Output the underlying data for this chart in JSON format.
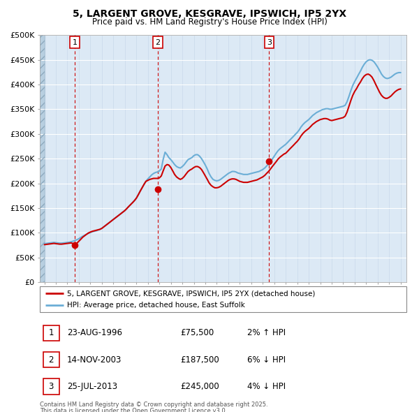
{
  "title_line1": "5, LARGENT GROVE, KESGRAVE, IPSWICH, IP5 2YX",
  "title_line2": "Price paid vs. HM Land Registry's House Price Index (HPI)",
  "ylim": [
    0,
    500000
  ],
  "yticks": [
    0,
    50000,
    100000,
    150000,
    200000,
    250000,
    300000,
    350000,
    400000,
    450000,
    500000
  ],
  "ytick_labels": [
    "£0",
    "£50K",
    "£100K",
    "£150K",
    "£200K",
    "£250K",
    "£300K",
    "£350K",
    "£400K",
    "£450K",
    "£500K"
  ],
  "xlim_start": 1993.6,
  "xlim_end": 2025.5,
  "hpi_color": "#6baed6",
  "price_color": "#cc0000",
  "bg_plot": "#dce9f5",
  "bg_hatch_color": "#b8cfe0",
  "grid_color": "#c8d8ea",
  "transaction_dates": [
    1996.644,
    2003.872,
    2013.558
  ],
  "transaction_prices": [
    75500,
    187500,
    245000
  ],
  "transaction_labels": [
    "1",
    "2",
    "3"
  ],
  "transaction_info": [
    {
      "label": "1",
      "date": "23-AUG-1996",
      "price": "£75,500",
      "hpi": "2% ↑ HPI"
    },
    {
      "label": "2",
      "date": "14-NOV-2003",
      "price": "£187,500",
      "hpi": "6% ↓ HPI"
    },
    {
      "label": "3",
      "date": "25-JUL-2013",
      "price": "£245,000",
      "hpi": "4% ↓ HPI"
    }
  ],
  "legend_line1": "5, LARGENT GROVE, KESGRAVE, IPSWICH, IP5 2YX (detached house)",
  "legend_line2": "HPI: Average price, detached house, East Suffolk",
  "footer_line1": "Contains HM Land Registry data © Crown copyright and database right 2025.",
  "footer_line2": "This data is licensed under the Open Government Licence v3.0.",
  "hpi_data": [
    [
      1994.0,
      78000
    ],
    [
      1994.17,
      78500
    ],
    [
      1994.33,
      79000
    ],
    [
      1994.5,
      79500
    ],
    [
      1994.67,
      80000
    ],
    [
      1994.83,
      80500
    ],
    [
      1995.0,
      80000
    ],
    [
      1995.17,
      79500
    ],
    [
      1995.33,
      79000
    ],
    [
      1995.5,
      79000
    ],
    [
      1995.67,
      79500
    ],
    [
      1995.83,
      80000
    ],
    [
      1996.0,
      80500
    ],
    [
      1996.17,
      81000
    ],
    [
      1996.33,
      82000
    ],
    [
      1996.5,
      83000
    ],
    [
      1996.67,
      84500
    ],
    [
      1996.83,
      86000
    ],
    [
      1997.0,
      88000
    ],
    [
      1997.17,
      90500
    ],
    [
      1997.33,
      93000
    ],
    [
      1997.5,
      95000
    ],
    [
      1997.67,
      97000
    ],
    [
      1997.83,
      99000
    ],
    [
      1998.0,
      100500
    ],
    [
      1998.17,
      102000
    ],
    [
      1998.33,
      103000
    ],
    [
      1998.5,
      104000
    ],
    [
      1998.67,
      105500
    ],
    [
      1998.83,
      107000
    ],
    [
      1999.0,
      109000
    ],
    [
      1999.17,
      112000
    ],
    [
      1999.33,
      115000
    ],
    [
      1999.5,
      118000
    ],
    [
      1999.67,
      121000
    ],
    [
      1999.83,
      124000
    ],
    [
      2000.0,
      127000
    ],
    [
      2000.17,
      130000
    ],
    [
      2000.33,
      133000
    ],
    [
      2000.5,
      136000
    ],
    [
      2000.67,
      139000
    ],
    [
      2000.83,
      142000
    ],
    [
      2001.0,
      145000
    ],
    [
      2001.17,
      149000
    ],
    [
      2001.33,
      153000
    ],
    [
      2001.5,
      157000
    ],
    [
      2001.67,
      161000
    ],
    [
      2001.83,
      165000
    ],
    [
      2002.0,
      170000
    ],
    [
      2002.17,
      177000
    ],
    [
      2002.33,
      184000
    ],
    [
      2002.5,
      191000
    ],
    [
      2002.67,
      198000
    ],
    [
      2002.83,
      204000
    ],
    [
      2003.0,
      209000
    ],
    [
      2003.17,
      213000
    ],
    [
      2003.33,
      217000
    ],
    [
      2003.5,
      220000
    ],
    [
      2003.67,
      222000
    ],
    [
      2003.83,
      223000
    ],
    [
      2004.0,
      225000
    ],
    [
      2004.17,
      229000
    ],
    [
      2004.33,
      248000
    ],
    [
      2004.5,
      263000
    ],
    [
      2004.67,
      258000
    ],
    [
      2004.83,
      252000
    ],
    [
      2005.0,
      248000
    ],
    [
      2005.17,
      243000
    ],
    [
      2005.33,
      238000
    ],
    [
      2005.5,
      234000
    ],
    [
      2005.67,
      232000
    ],
    [
      2005.83,
      231000
    ],
    [
      2006.0,
      234000
    ],
    [
      2006.17,
      238000
    ],
    [
      2006.33,
      243000
    ],
    [
      2006.5,
      248000
    ],
    [
      2006.67,
      250000
    ],
    [
      2006.83,
      252000
    ],
    [
      2007.0,
      256000
    ],
    [
      2007.17,
      258000
    ],
    [
      2007.33,
      258000
    ],
    [
      2007.5,
      255000
    ],
    [
      2007.67,
      250000
    ],
    [
      2007.83,
      244000
    ],
    [
      2008.0,
      237000
    ],
    [
      2008.17,
      229000
    ],
    [
      2008.33,
      220000
    ],
    [
      2008.5,
      213000
    ],
    [
      2008.67,
      208000
    ],
    [
      2008.83,
      206000
    ],
    [
      2009.0,
      205000
    ],
    [
      2009.17,
      206000
    ],
    [
      2009.33,
      208000
    ],
    [
      2009.5,
      211000
    ],
    [
      2009.67,
      214000
    ],
    [
      2009.83,
      217000
    ],
    [
      2010.0,
      220000
    ],
    [
      2010.17,
      222000
    ],
    [
      2010.33,
      224000
    ],
    [
      2010.5,
      224000
    ],
    [
      2010.67,
      223000
    ],
    [
      2010.83,
      221000
    ],
    [
      2011.0,
      220000
    ],
    [
      2011.17,
      219000
    ],
    [
      2011.33,
      218000
    ],
    [
      2011.5,
      218000
    ],
    [
      2011.67,
      218000
    ],
    [
      2011.83,
      219000
    ],
    [
      2012.0,
      220000
    ],
    [
      2012.17,
      221000
    ],
    [
      2012.33,
      222000
    ],
    [
      2012.5,
      223000
    ],
    [
      2012.67,
      224000
    ],
    [
      2012.83,
      226000
    ],
    [
      2013.0,
      228000
    ],
    [
      2013.17,
      231000
    ],
    [
      2013.33,
      235000
    ],
    [
      2013.5,
      239000
    ],
    [
      2013.67,
      244000
    ],
    [
      2013.83,
      249000
    ],
    [
      2014.0,
      255000
    ],
    [
      2014.17,
      261000
    ],
    [
      2014.33,
      266000
    ],
    [
      2014.5,
      270000
    ],
    [
      2014.67,
      273000
    ],
    [
      2014.83,
      276000
    ],
    [
      2015.0,
      279000
    ],
    [
      2015.17,
      283000
    ],
    [
      2015.33,
      287000
    ],
    [
      2015.5,
      291000
    ],
    [
      2015.67,
      295000
    ],
    [
      2015.83,
      299000
    ],
    [
      2016.0,
      303000
    ],
    [
      2016.17,
      308000
    ],
    [
      2016.33,
      314000
    ],
    [
      2016.5,
      319000
    ],
    [
      2016.67,
      323000
    ],
    [
      2016.83,
      326000
    ],
    [
      2017.0,
      329000
    ],
    [
      2017.17,
      333000
    ],
    [
      2017.33,
      337000
    ],
    [
      2017.5,
      340000
    ],
    [
      2017.67,
      343000
    ],
    [
      2017.83,
      345000
    ],
    [
      2018.0,
      347000
    ],
    [
      2018.17,
      349000
    ],
    [
      2018.33,
      350000
    ],
    [
      2018.5,
      351000
    ],
    [
      2018.67,
      351000
    ],
    [
      2018.83,
      350000
    ],
    [
      2019.0,
      350000
    ],
    [
      2019.17,
      351000
    ],
    [
      2019.33,
      352000
    ],
    [
      2019.5,
      353000
    ],
    [
      2019.67,
      354000
    ],
    [
      2019.83,
      355000
    ],
    [
      2020.0,
      356000
    ],
    [
      2020.17,
      358000
    ],
    [
      2020.33,
      365000
    ],
    [
      2020.5,
      376000
    ],
    [
      2020.67,
      388000
    ],
    [
      2020.83,
      398000
    ],
    [
      2021.0,
      406000
    ],
    [
      2021.17,
      413000
    ],
    [
      2021.33,
      420000
    ],
    [
      2021.5,
      427000
    ],
    [
      2021.67,
      435000
    ],
    [
      2021.83,
      441000
    ],
    [
      2022.0,
      446000
    ],
    [
      2022.17,
      449000
    ],
    [
      2022.33,
      450000
    ],
    [
      2022.5,
      449000
    ],
    [
      2022.67,
      446000
    ],
    [
      2022.83,
      441000
    ],
    [
      2023.0,
      435000
    ],
    [
      2023.17,
      428000
    ],
    [
      2023.33,
      421000
    ],
    [
      2023.5,
      416000
    ],
    [
      2023.67,
      413000
    ],
    [
      2023.83,
      412000
    ],
    [
      2024.0,
      413000
    ],
    [
      2024.17,
      415000
    ],
    [
      2024.33,
      418000
    ],
    [
      2024.5,
      421000
    ],
    [
      2024.67,
      423000
    ],
    [
      2024.83,
      424000
    ],
    [
      2025.0,
      424000
    ]
  ],
  "price_data": [
    [
      1994.0,
      76000
    ],
    [
      1994.17,
      76500
    ],
    [
      1994.33,
      77000
    ],
    [
      1994.5,
      77500
    ],
    [
      1994.67,
      78000
    ],
    [
      1994.83,
      78500
    ],
    [
      1995.0,
      78000
    ],
    [
      1995.17,
      77500
    ],
    [
      1995.33,
      77000
    ],
    [
      1995.5,
      77000
    ],
    [
      1995.67,
      77500
    ],
    [
      1995.83,
      78000
    ],
    [
      1996.0,
      78500
    ],
    [
      1996.17,
      79000
    ],
    [
      1996.33,
      79500
    ],
    [
      1996.5,
      78000
    ],
    [
      1996.67,
      77500
    ],
    [
      1996.83,
      79000
    ],
    [
      1997.0,
      83000
    ],
    [
      1997.17,
      87000
    ],
    [
      1997.33,
      91000
    ],
    [
      1997.5,
      94000
    ],
    [
      1997.67,
      97000
    ],
    [
      1997.83,
      99500
    ],
    [
      1998.0,
      101500
    ],
    [
      1998.17,
      103000
    ],
    [
      1998.33,
      104000
    ],
    [
      1998.5,
      105000
    ],
    [
      1998.67,
      106000
    ],
    [
      1998.83,
      107000
    ],
    [
      1999.0,
      109000
    ],
    [
      1999.17,
      112000
    ],
    [
      1999.33,
      115000
    ],
    [
      1999.5,
      118000
    ],
    [
      1999.67,
      121000
    ],
    [
      1999.83,
      124000
    ],
    [
      2000.0,
      127000
    ],
    [
      2000.17,
      130000
    ],
    [
      2000.33,
      133000
    ],
    [
      2000.5,
      136000
    ],
    [
      2000.67,
      139000
    ],
    [
      2000.83,
      142000
    ],
    [
      2001.0,
      145000
    ],
    [
      2001.17,
      149000
    ],
    [
      2001.33,
      153000
    ],
    [
      2001.5,
      157000
    ],
    [
      2001.67,
      161000
    ],
    [
      2001.83,
      165000
    ],
    [
      2002.0,
      170000
    ],
    [
      2002.17,
      177000
    ],
    [
      2002.33,
      184000
    ],
    [
      2002.5,
      191000
    ],
    [
      2002.67,
      198000
    ],
    [
      2002.83,
      204000
    ],
    [
      2003.0,
      206000
    ],
    [
      2003.17,
      208000
    ],
    [
      2003.33,
      209000
    ],
    [
      2003.5,
      210000
    ],
    [
      2003.67,
      210000
    ],
    [
      2003.83,
      210000
    ],
    [
      2004.0,
      211000
    ],
    [
      2004.17,
      215000
    ],
    [
      2004.33,
      225000
    ],
    [
      2004.5,
      235000
    ],
    [
      2004.67,
      238000
    ],
    [
      2004.83,
      237000
    ],
    [
      2005.0,
      232000
    ],
    [
      2005.17,
      225000
    ],
    [
      2005.33,
      218000
    ],
    [
      2005.5,
      213000
    ],
    [
      2005.67,
      210000
    ],
    [
      2005.83,
      208000
    ],
    [
      2006.0,
      210000
    ],
    [
      2006.17,
      214000
    ],
    [
      2006.33,
      219000
    ],
    [
      2006.5,
      224000
    ],
    [
      2006.67,
      227000
    ],
    [
      2006.83,
      229000
    ],
    [
      2007.0,
      232000
    ],
    [
      2007.17,
      234000
    ],
    [
      2007.33,
      234000
    ],
    [
      2007.5,
      232000
    ],
    [
      2007.67,
      228000
    ],
    [
      2007.83,
      222000
    ],
    [
      2008.0,
      215000
    ],
    [
      2008.17,
      208000
    ],
    [
      2008.33,
      201000
    ],
    [
      2008.5,
      196000
    ],
    [
      2008.67,
      193000
    ],
    [
      2008.83,
      191000
    ],
    [
      2009.0,
      191000
    ],
    [
      2009.17,
      192000
    ],
    [
      2009.33,
      194000
    ],
    [
      2009.5,
      197000
    ],
    [
      2009.67,
      200000
    ],
    [
      2009.83,
      203000
    ],
    [
      2010.0,
      206000
    ],
    [
      2010.17,
      208000
    ],
    [
      2010.33,
      209000
    ],
    [
      2010.5,
      209000
    ],
    [
      2010.67,
      208000
    ],
    [
      2010.83,
      206000
    ],
    [
      2011.0,
      204000
    ],
    [
      2011.17,
      203000
    ],
    [
      2011.33,
      202000
    ],
    [
      2011.5,
      202000
    ],
    [
      2011.67,
      202000
    ],
    [
      2011.83,
      203000
    ],
    [
      2012.0,
      204000
    ],
    [
      2012.17,
      205000
    ],
    [
      2012.33,
      206000
    ],
    [
      2012.5,
      207000
    ],
    [
      2012.67,
      209000
    ],
    [
      2012.83,
      211000
    ],
    [
      2013.0,
      213000
    ],
    [
      2013.17,
      216000
    ],
    [
      2013.33,
      220000
    ],
    [
      2013.5,
      224000
    ],
    [
      2013.67,
      229000
    ],
    [
      2013.83,
      234000
    ],
    [
      2014.0,
      239000
    ],
    [
      2014.17,
      244000
    ],
    [
      2014.33,
      249000
    ],
    [
      2014.5,
      253000
    ],
    [
      2014.67,
      256000
    ],
    [
      2014.83,
      259000
    ],
    [
      2015.0,
      261000
    ],
    [
      2015.17,
      265000
    ],
    [
      2015.33,
      269000
    ],
    [
      2015.5,
      273000
    ],
    [
      2015.67,
      277000
    ],
    [
      2015.83,
      281000
    ],
    [
      2016.0,
      285000
    ],
    [
      2016.17,
      290000
    ],
    [
      2016.33,
      296000
    ],
    [
      2016.5,
      301000
    ],
    [
      2016.67,
      305000
    ],
    [
      2016.83,
      308000
    ],
    [
      2017.0,
      311000
    ],
    [
      2017.17,
      315000
    ],
    [
      2017.33,
      319000
    ],
    [
      2017.5,
      322000
    ],
    [
      2017.67,
      325000
    ],
    [
      2017.83,
      327000
    ],
    [
      2018.0,
      329000
    ],
    [
      2018.17,
      330000
    ],
    [
      2018.33,
      331000
    ],
    [
      2018.5,
      331000
    ],
    [
      2018.67,
      330000
    ],
    [
      2018.83,
      328000
    ],
    [
      2019.0,
      327000
    ],
    [
      2019.17,
      328000
    ],
    [
      2019.33,
      329000
    ],
    [
      2019.5,
      330000
    ],
    [
      2019.67,
      331000
    ],
    [
      2019.83,
      332000
    ],
    [
      2020.0,
      333000
    ],
    [
      2020.17,
      336000
    ],
    [
      2020.33,
      344000
    ],
    [
      2020.5,
      356000
    ],
    [
      2020.67,
      368000
    ],
    [
      2020.83,
      378000
    ],
    [
      2021.0,
      386000
    ],
    [
      2021.17,
      392000
    ],
    [
      2021.33,
      399000
    ],
    [
      2021.5,
      405000
    ],
    [
      2021.67,
      412000
    ],
    [
      2021.83,
      417000
    ],
    [
      2022.0,
      420000
    ],
    [
      2022.17,
      421000
    ],
    [
      2022.33,
      419000
    ],
    [
      2022.5,
      415000
    ],
    [
      2022.67,
      408000
    ],
    [
      2022.83,
      400000
    ],
    [
      2023.0,
      392000
    ],
    [
      2023.17,
      384000
    ],
    [
      2023.33,
      378000
    ],
    [
      2023.5,
      374000
    ],
    [
      2023.67,
      372000
    ],
    [
      2023.83,
      372000
    ],
    [
      2024.0,
      374000
    ],
    [
      2024.17,
      377000
    ],
    [
      2024.33,
      381000
    ],
    [
      2024.5,
      385000
    ],
    [
      2024.67,
      388000
    ],
    [
      2024.83,
      390000
    ],
    [
      2025.0,
      391000
    ]
  ]
}
